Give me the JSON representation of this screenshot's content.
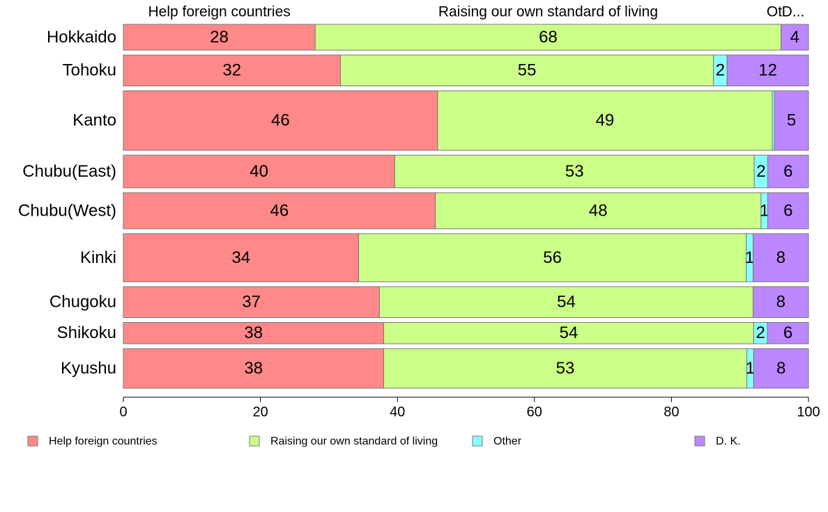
{
  "chart_data": {
    "type": "bar",
    "orientation": "horizontal",
    "stacked": true,
    "categories": [
      "Hokkaido",
      "Tohoku",
      "Kanto",
      "Chubu(East)",
      "Chubu(West)",
      "Kinki",
      "Chugoku",
      "Shikoku",
      "Kyushu"
    ],
    "category_weights": [
      0.75,
      0.9,
      1.73,
      0.95,
      1.05,
      1.4,
      0.9,
      0.62,
      1.15
    ],
    "series": [
      {
        "name": "Help foreign countries",
        "color": "#ff8888",
        "values": [
          28,
          32,
          46,
          40,
          46,
          34,
          37,
          38,
          38
        ]
      },
      {
        "name": "Raising our own standard of living",
        "color": "#ccff88",
        "values": [
          68,
          55,
          49,
          53,
          48,
          56,
          54,
          54,
          53
        ]
      },
      {
        "name": "Other",
        "color": "#88ffff",
        "values": [
          0,
          2,
          0.3,
          2,
          1,
          1,
          0,
          2,
          1
        ]
      },
      {
        "name": "D. K.",
        "color": "#bb88ff",
        "values": [
          4,
          12,
          5,
          6,
          6,
          8,
          8,
          6,
          8
        ]
      }
    ],
    "data_labels": [
      [
        "28",
        "68",
        "",
        "4"
      ],
      [
        "32",
        "55",
        "2",
        "12"
      ],
      [
        "46",
        "49",
        "",
        "5"
      ],
      [
        "40",
        "53",
        "2",
        "6"
      ],
      [
        "46",
        "48",
        "1",
        "6"
      ],
      [
        "34",
        "56",
        "1",
        "8"
      ],
      [
        "37",
        "54",
        "",
        "8"
      ],
      [
        "38",
        "54",
        "2",
        "6"
      ],
      [
        "38",
        "53",
        "1",
        "8"
      ]
    ],
    "column_headers": [
      "Help foreign countries",
      "Raising our own standard of living",
      "Ot",
      "D..."
    ],
    "xlim": [
      0,
      100
    ],
    "xticks": [
      0,
      20,
      40,
      60,
      80,
      100
    ],
    "legend": {
      "placement": "bottom",
      "entries": [
        "Help foreign countries",
        "Raising our own standard of living",
        "Other",
        "D. K."
      ]
    },
    "grid": false
  }
}
